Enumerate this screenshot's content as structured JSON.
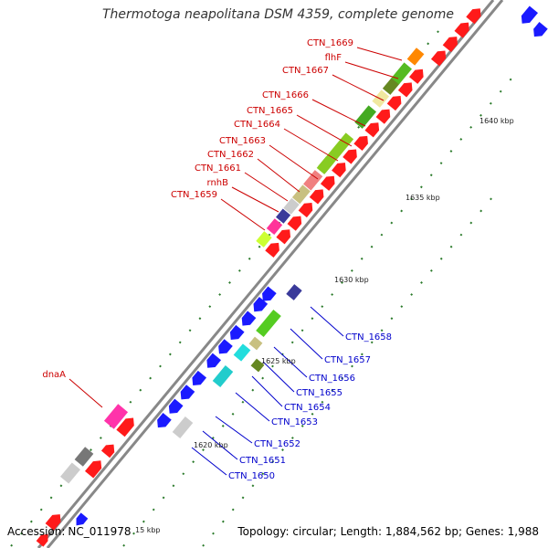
{
  "title": "Thermotoga neapolitana DSM 4359, complete genome",
  "footer": {
    "accession_label": "Accession:",
    "accession": "NC_011978",
    "topology": "Topology: circular; Length: 1,884,562 bp; Genes: 1,988"
  },
  "colors": {
    "forward_label": "#cc0000",
    "reverse_label": "#0000cc",
    "axis": "#808080",
    "tick": "#2a7a2a"
  },
  "ticks": [
    {
      "label": "15 kbp"
    },
    {
      "label": "1620 kbp"
    },
    {
      "label": "1625 kbp"
    },
    {
      "label": "1630 kbp"
    },
    {
      "label": "1635 kbp"
    },
    {
      "label": "1640 kbp"
    }
  ],
  "forward_labels": [
    {
      "name": "CTN_1669"
    },
    {
      "name": "flhF"
    },
    {
      "name": "CTN_1667"
    },
    {
      "name": "CTN_1666"
    },
    {
      "name": "CTN_1665"
    },
    {
      "name": "CTN_1664"
    },
    {
      "name": "CTN_1663"
    },
    {
      "name": "CTN_1662"
    },
    {
      "name": "CTN_1661"
    },
    {
      "name": "rnhB"
    },
    {
      "name": "CTN_1659"
    },
    {
      "name": "dnaA"
    }
  ],
  "reverse_labels": [
    {
      "name": "CTN_1658"
    },
    {
      "name": "CTN_1657"
    },
    {
      "name": "CTN_1656"
    },
    {
      "name": "CTN_1655"
    },
    {
      "name": "CTN_1654"
    },
    {
      "name": "CTN_1653"
    },
    {
      "name": "CTN_1652"
    },
    {
      "name": "CTN_1651"
    },
    {
      "name": "CTN_1650"
    }
  ]
}
